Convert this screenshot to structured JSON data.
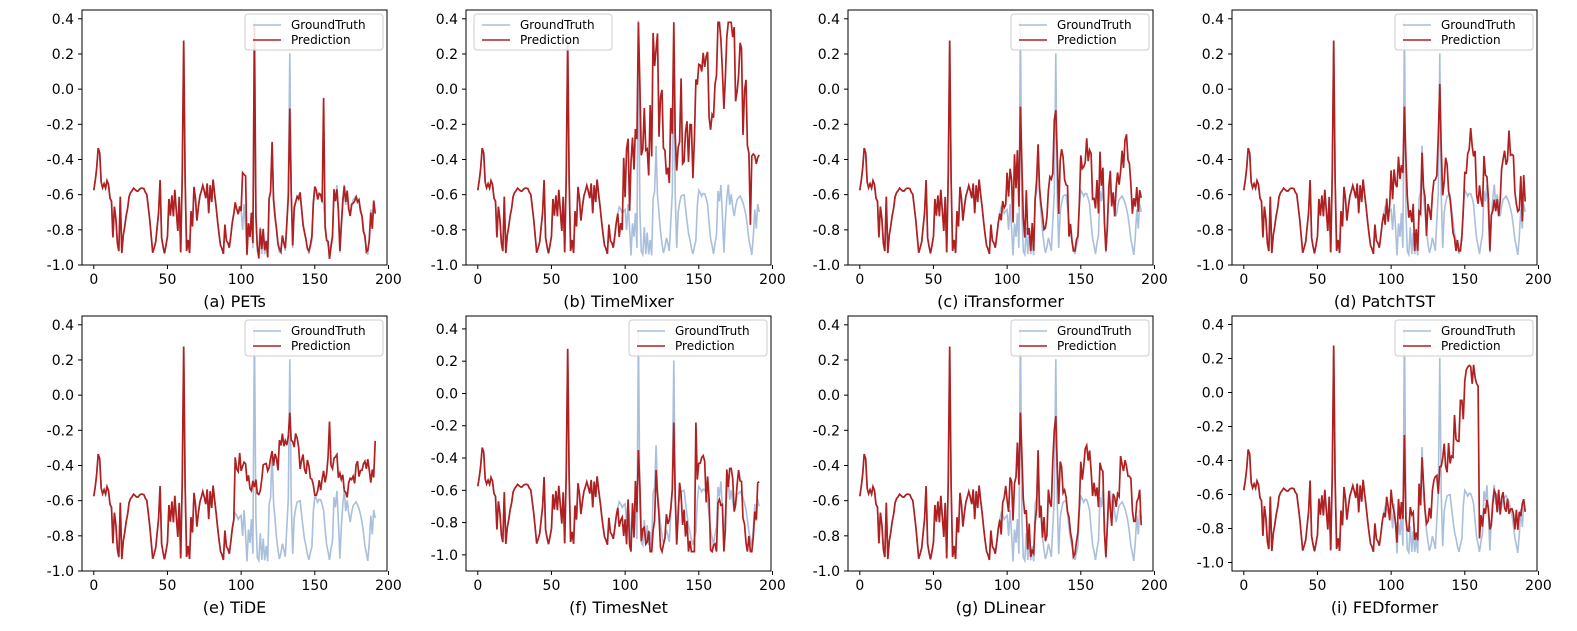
{
  "figure": {
    "legend": {
      "ground_truth_label": "GroundTruth",
      "prediction_label": "Prediction"
    },
    "colors": {
      "ground_truth": "#a9bfdb",
      "prediction": "#b02020",
      "axes": "#000000"
    }
  },
  "chart_data": [
    {
      "type": "line",
      "caption": "(a) PETs",
      "model": "PETs",
      "xlabel": "",
      "ylabel": "",
      "xlim": [
        -8,
        199
      ],
      "ylim": [
        -1.0,
        0.45
      ],
      "xticks": [
        0,
        50,
        100,
        150,
        200
      ],
      "yticks": [
        -1.0,
        -0.8,
        -0.6,
        -0.4,
        -0.2,
        0.0,
        0.2,
        0.4
      ],
      "legend_position": "top-right",
      "prediction_style": "pets"
    },
    {
      "type": "line",
      "caption": "(b) TimeMixer",
      "model": "TimeMixer",
      "xlabel": "",
      "ylabel": "",
      "xlim": [
        -8,
        199
      ],
      "ylim": [
        -1.0,
        0.45
      ],
      "xticks": [
        0,
        50,
        100,
        150,
        200
      ],
      "yticks": [
        -1.0,
        -0.8,
        -0.6,
        -0.4,
        -0.2,
        0.0,
        0.2,
        0.4
      ],
      "legend_position": "top-left",
      "prediction_style": "timemixer"
    },
    {
      "type": "line",
      "caption": "(c) iTransformer",
      "model": "iTransformer",
      "xlabel": "",
      "ylabel": "",
      "xlim": [
        -8,
        199
      ],
      "ylim": [
        -1.0,
        0.45
      ],
      "xticks": [
        0,
        50,
        100,
        150,
        200
      ],
      "yticks": [
        -1.0,
        -0.8,
        -0.6,
        -0.4,
        -0.2,
        0.0,
        0.2,
        0.4
      ],
      "legend_position": "top-right",
      "prediction_style": "itransformer"
    },
    {
      "type": "line",
      "caption": "(d) PatchTST",
      "model": "PatchTST",
      "xlabel": "",
      "ylabel": "",
      "xlim": [
        -8,
        199
      ],
      "ylim": [
        -1.0,
        0.45
      ],
      "xticks": [
        0,
        50,
        100,
        150,
        200
      ],
      "yticks": [
        -1.0,
        -0.8,
        -0.6,
        -0.4,
        -0.2,
        0.0,
        0.2,
        0.4
      ],
      "legend_position": "top-right",
      "prediction_style": "patchtst"
    },
    {
      "type": "line",
      "caption": "(e) TiDE",
      "model": "TiDE",
      "xlabel": "",
      "ylabel": "",
      "xlim": [
        -8,
        199
      ],
      "ylim": [
        -1.0,
        0.45
      ],
      "xticks": [
        0,
        50,
        100,
        150,
        200
      ],
      "yticks": [
        -1.0,
        -0.8,
        -0.6,
        -0.4,
        -0.2,
        0.0,
        0.2,
        0.4
      ],
      "legend_position": "top-right",
      "prediction_style": "tide"
    },
    {
      "type": "line",
      "caption": "(f) TimesNet",
      "model": "TimesNet",
      "xlabel": "",
      "ylabel": "",
      "xlim": [
        -8,
        199
      ],
      "ylim": [
        -1.1,
        0.48
      ],
      "xticks": [
        0,
        50,
        100,
        150,
        200
      ],
      "yticks": [
        -1.0,
        -0.8,
        -0.6,
        -0.4,
        -0.2,
        0.0,
        0.2,
        0.4
      ],
      "legend_position": "top-right",
      "prediction_style": "timesnet"
    },
    {
      "type": "line",
      "caption": "(g) DLinear",
      "model": "DLinear",
      "xlabel": "",
      "ylabel": "",
      "xlim": [
        -8,
        199
      ],
      "ylim": [
        -1.0,
        0.45
      ],
      "xticks": [
        0,
        50,
        100,
        150,
        200
      ],
      "yticks": [
        -1.0,
        -0.8,
        -0.6,
        -0.4,
        -0.2,
        0.0,
        0.2,
        0.4
      ],
      "legend_position": "top-right",
      "prediction_style": "dlinear"
    },
    {
      "type": "line",
      "caption": "(i) FEDformer",
      "model": "FEDformer",
      "xlabel": "",
      "ylabel": "",
      "xlim": [
        -8,
        199
      ],
      "ylim": [
        -1.05,
        0.45
      ],
      "xticks": [
        0,
        50,
        100,
        150,
        200
      ],
      "yticks": [
        -1.0,
        -0.8,
        -0.6,
        -0.4,
        -0.2,
        0.0,
        0.2,
        0.4
      ],
      "legend_position": "top-right",
      "prediction_style": "fedformer"
    }
  ]
}
